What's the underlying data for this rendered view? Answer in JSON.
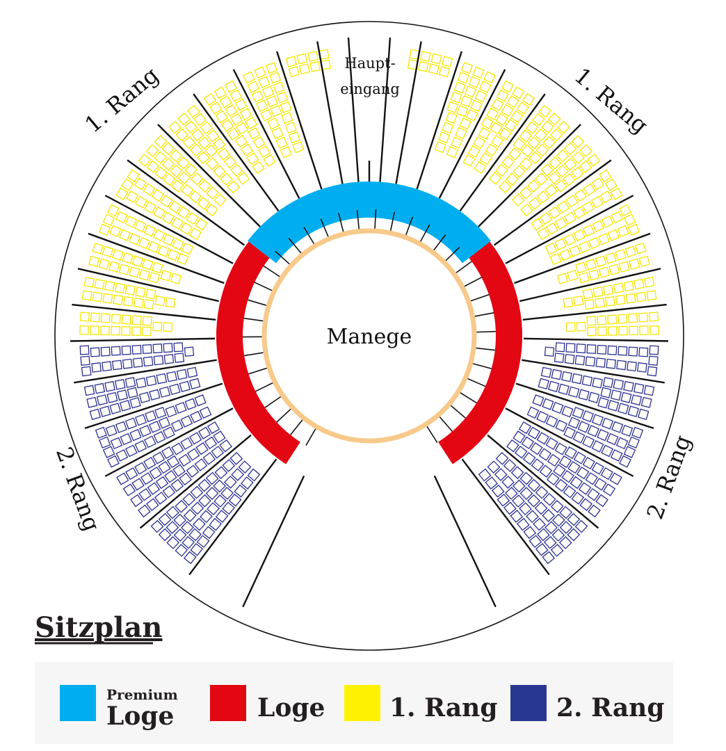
{
  "diagram": {
    "center_label": "Manege",
    "entrance_label": [
      "Haupt-",
      "eingang"
    ],
    "section_labels": {
      "rang1_left": "1. Rang",
      "rang1_right": "1. Rang",
      "rang2_left": "2. Rang",
      "rang2_right": "2. Rang"
    },
    "title": "Sitzplan"
  },
  "legend": {
    "premium_small": "Premium",
    "premium_large": "Loge",
    "loge": "Loge",
    "rang1": "1. Rang",
    "rang2": "2. Rang"
  },
  "colors": {
    "premium_loge": "#00aeef",
    "loge": "#e30613",
    "rang1": "#fff200",
    "rang1_seat": "#f5e600",
    "rang2": "#283891",
    "rang2_seat": "#2b2f8f",
    "manege_ring": "#f7c98a",
    "outline": "#111111"
  }
}
